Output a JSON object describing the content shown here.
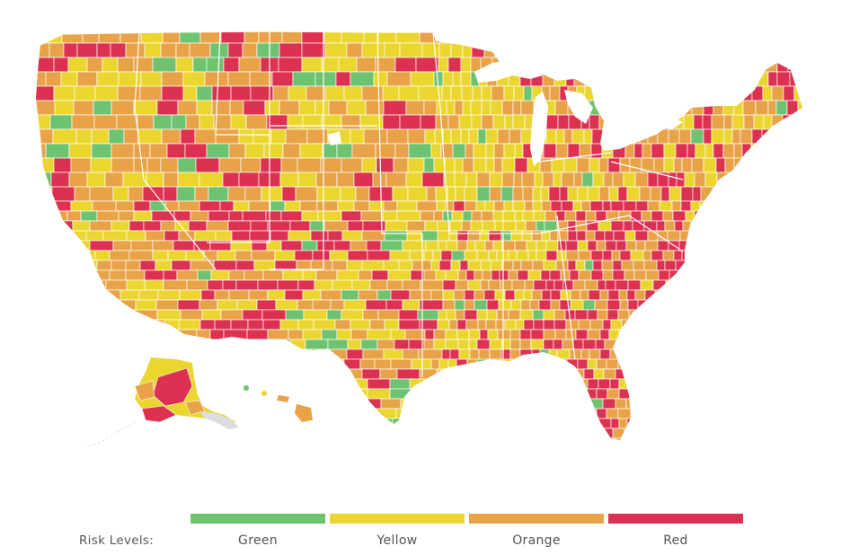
{
  "legend": {
    "title": "Risk Levels:",
    "items": [
      {
        "label": "Green",
        "color": "#6dc36f"
      },
      {
        "label": "Yellow",
        "color": "#ebd62f"
      },
      {
        "label": "Orange",
        "color": "#e8a348"
      },
      {
        "label": "Red",
        "color": "#dc3150"
      }
    ]
  },
  "colors": {
    "green": "#6dc36f",
    "yellow": "#ebd62f",
    "orange": "#e8a348",
    "red": "#dc3150",
    "border": "#ffffff"
  }
}
